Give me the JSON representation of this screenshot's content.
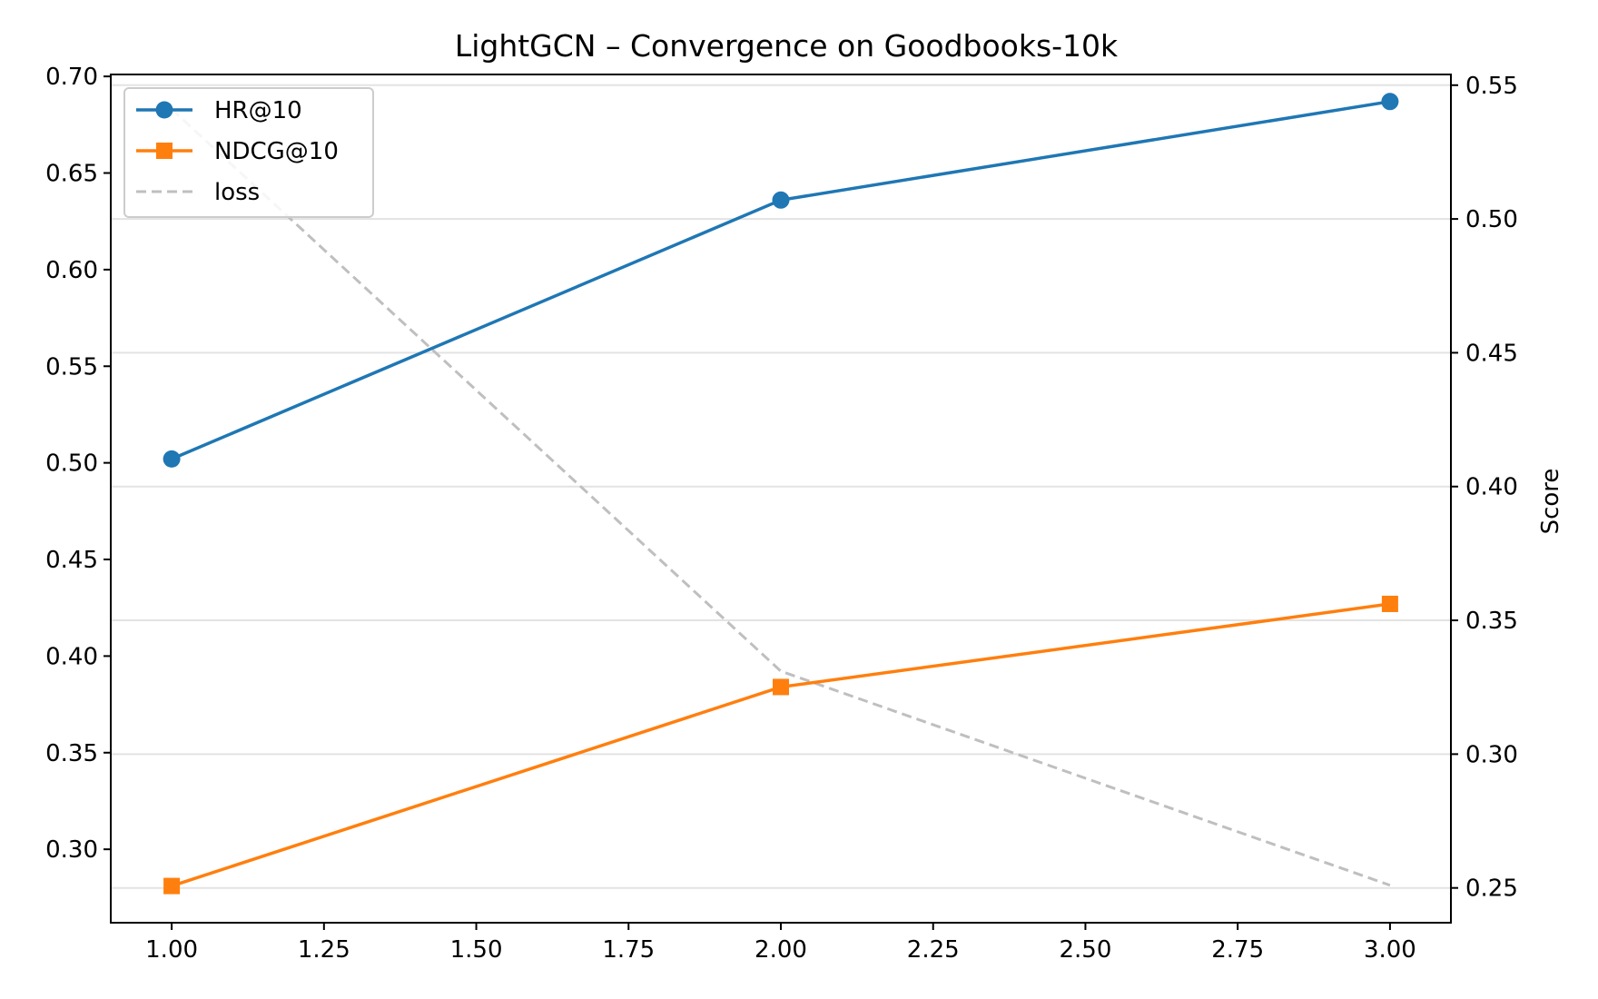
{
  "chart_data": {
    "type": "line",
    "title": "LightGCN – Convergence on Goodbooks-10k",
    "xlabel": "",
    "ylabel_left": "",
    "ylabel_right": "Score",
    "x": [
      1.0,
      2.0,
      3.0
    ],
    "xlim": [
      0.9,
      3.1
    ],
    "xticks": [
      "1.00",
      "1.25",
      "1.50",
      "1.75",
      "2.00",
      "2.25",
      "2.50",
      "2.75",
      "3.00"
    ],
    "ylim_left": [
      0.262,
      0.701
    ],
    "yticks_left": [
      "0.30",
      "0.35",
      "0.40",
      "0.45",
      "0.50",
      "0.55",
      "0.60",
      "0.65",
      "0.70"
    ],
    "ylim_right": [
      0.237,
      0.554
    ],
    "yticks_right": [
      "0.25",
      "0.30",
      "0.35",
      "0.40",
      "0.45",
      "0.50",
      "0.55"
    ],
    "grid": "horizontal (right axis)",
    "legend_position": "top-left",
    "series": [
      {
        "name": "HR@10",
        "axis": "left",
        "values": [
          0.502,
          0.636,
          0.687
        ],
        "color": "#1f77b4",
        "marker": "circle",
        "style": "solid"
      },
      {
        "name": "NDCG@10",
        "axis": "left",
        "values": [
          0.281,
          0.384,
          0.427
        ],
        "color": "#ff7f0e",
        "marker": "square",
        "style": "solid"
      },
      {
        "name": "loss",
        "axis": "right",
        "values": [
          0.541,
          0.331,
          0.251
        ],
        "color": "#bfbfbf",
        "marker": "none",
        "style": "dashed"
      }
    ]
  }
}
